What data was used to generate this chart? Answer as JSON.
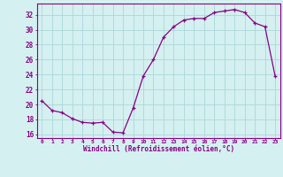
{
  "x": [
    0,
    1,
    2,
    3,
    4,
    5,
    6,
    7,
    8,
    9,
    10,
    11,
    12,
    13,
    14,
    15,
    16,
    17,
    18,
    19,
    20,
    21,
    22,
    23
  ],
  "y": [
    20.5,
    19.2,
    18.9,
    18.1,
    17.6,
    17.5,
    17.6,
    16.3,
    16.2,
    19.5,
    23.8,
    26.0,
    29.0,
    30.4,
    31.3,
    31.5,
    31.5,
    32.3,
    32.5,
    32.7,
    32.3,
    30.9,
    30.4,
    23.8
  ],
  "line_color": "#880088",
  "marker_color": "#880088",
  "bg_color": "#d5f0f0",
  "grid_color": "#aad8d8",
  "axis_color": "#880088",
  "tick_color": "#880088",
  "xlabel": "Windchill (Refroidissement éolien,°C)",
  "ylim": [
    15.5,
    33.5
  ],
  "yticks": [
    16,
    18,
    20,
    22,
    24,
    26,
    28,
    30,
    32
  ],
  "xlim": [
    -0.5,
    23.5
  ],
  "xtick_labels": [
    "0",
    "1",
    "2",
    "3",
    "4",
    "5",
    "6",
    "7",
    "8",
    "9",
    "10",
    "11",
    "12",
    "13",
    "14",
    "15",
    "16",
    "17",
    "18",
    "19",
    "20",
    "21",
    "22",
    "23"
  ]
}
